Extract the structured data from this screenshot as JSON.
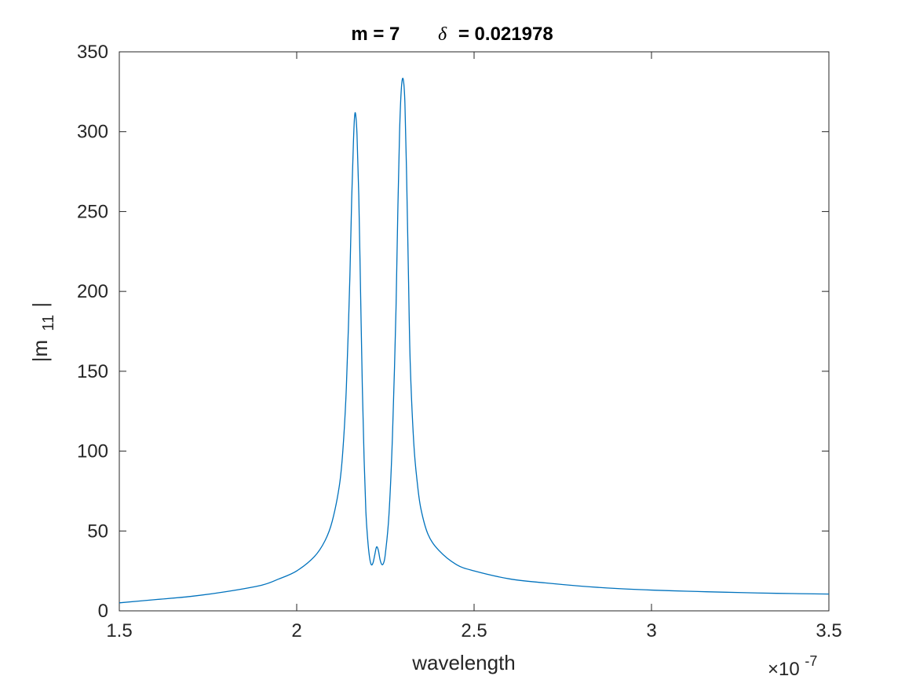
{
  "chart_data": {
    "type": "line",
    "title_m": "m = 7",
    "title_delta_symbol": "δ",
    "title_delta_value": "= 0.021978",
    "xlabel": "wavelength",
    "ylabel_prefix": "|m",
    "ylabel_subscript": "11",
    "ylabel_suffix": "|",
    "x_multiplier_base": "×10",
    "x_multiplier_exponent": "-7",
    "xlim": [
      1.5,
      3.5
    ],
    "ylim": [
      0,
      350
    ],
    "xticks": [
      "1.5",
      "2",
      "2.5",
      "3",
      "3.5"
    ],
    "yticks": [
      "0",
      "50",
      "100",
      "150",
      "200",
      "250",
      "300",
      "350"
    ],
    "xtick_values": [
      1.5,
      2.0,
      2.5,
      3.0,
      3.5
    ],
    "ytick_values": [
      0,
      50,
      100,
      150,
      200,
      250,
      300,
      350
    ],
    "grid": false,
    "line_color": "#0072BD",
    "series": [
      {
        "x": [
          1.5,
          1.6,
          1.7,
          1.8,
          1.9,
          1.95,
          2.0,
          2.05,
          2.08,
          2.1,
          2.12,
          2.13,
          2.14,
          2.15,
          2.155,
          2.16,
          2.163,
          2.166,
          2.17,
          2.175,
          2.18,
          2.185,
          2.19,
          2.195,
          2.2,
          2.205,
          2.21,
          2.215,
          2.22,
          2.225,
          2.23,
          2.235,
          2.24,
          2.245,
          2.25,
          2.26,
          2.27,
          2.28,
          2.285,
          2.29,
          2.295,
          2.3,
          2.305,
          2.31,
          2.315,
          2.32,
          2.33,
          2.34,
          2.35,
          2.37,
          2.4,
          2.45,
          2.5,
          2.6,
          2.7,
          2.8,
          2.9,
          3.0,
          3.1,
          3.2,
          3.3,
          3.4,
          3.5
        ],
        "y": [
          5,
          7,
          9,
          12,
          16,
          20,
          25,
          34,
          44,
          56,
          78,
          100,
          140,
          210,
          258,
          294,
          309,
          311,
          298,
          260,
          200,
          140,
          95,
          62,
          45,
          34,
          29,
          30,
          35,
          40,
          38,
          32,
          29,
          30,
          36,
          60,
          110,
          190,
          250,
          300,
          327,
          333,
          318,
          270,
          210,
          155,
          105,
          80,
          64,
          48,
          38,
          29,
          25,
          20,
          17.5,
          15.5,
          14,
          13,
          12.3,
          11.7,
          11.2,
          10.8,
          10.5
        ]
      }
    ]
  }
}
